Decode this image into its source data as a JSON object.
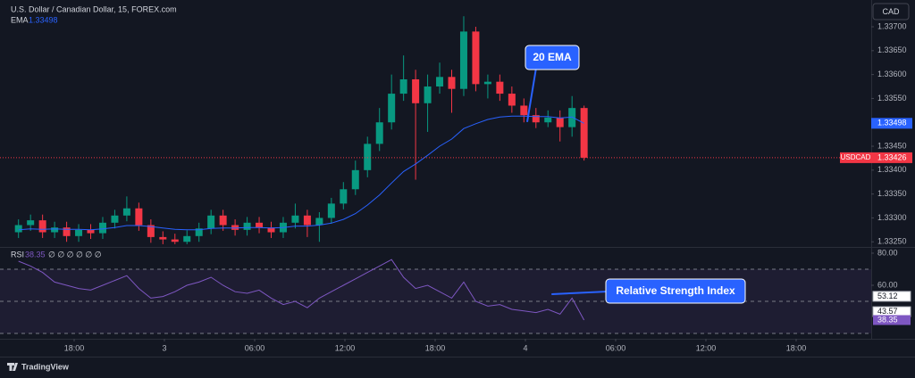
{
  "chart_data": [
    {
      "type": "candlestick",
      "title": "U.S. Dollar / Canadian Dollar, 15, FOREX.com",
      "currency": "CAD",
      "symbol": "USDCAD",
      "up_color": "#089981",
      "down_color": "#f23645",
      "x": [
        14.3,
        15.1,
        15.9,
        16.7,
        17.5,
        18.3,
        19.1,
        19.9,
        20.7,
        21.5,
        22.3,
        23.1,
        23.9,
        24.7,
        25.5,
        26.3,
        27.1,
        27.9,
        28.7,
        29.5,
        30.3,
        31.1,
        31.9,
        32.7,
        33.5,
        34.3,
        35.1,
        35.9,
        36.7,
        37.5,
        38.3,
        39.1,
        39.9,
        40.7,
        41.5,
        42.3,
        43.1,
        43.9,
        44.7,
        45.5,
        46.3,
        47.1,
        47.9,
        48.7,
        49.5,
        50.3,
        51.1,
        51.9
      ],
      "open": [
        1.3327,
        1.33285,
        1.33295,
        1.3327,
        1.3328,
        1.33262,
        1.33275,
        1.33268,
        1.3329,
        1.33305,
        1.3332,
        1.33285,
        1.3326,
        1.33255,
        1.3325,
        1.33262,
        1.33278,
        1.33305,
        1.33285,
        1.33275,
        1.3329,
        1.3328,
        1.3327,
        1.3329,
        1.33305,
        1.33285,
        1.333,
        1.3333,
        1.3336,
        1.334,
        1.33455,
        1.335,
        1.3356,
        1.3359,
        1.3354,
        1.33575,
        1.33595,
        1.3357,
        1.3369,
        1.3358,
        1.33585,
        1.3356,
        1.33535,
        1.33515,
        1.335,
        1.3351,
        1.3349,
        1.3353
      ],
      "high": [
        1.33297,
        1.33307,
        1.33307,
        1.33292,
        1.33292,
        1.33287,
        1.33287,
        1.33302,
        1.33317,
        1.33345,
        1.33332,
        1.33297,
        1.33272,
        1.33267,
        1.33274,
        1.3329,
        1.33317,
        1.33317,
        1.33297,
        1.33302,
        1.33302,
        1.33292,
        1.33302,
        1.3333,
        1.33317,
        1.33312,
        1.33342,
        1.33375,
        1.3342,
        1.3347,
        1.3353,
        1.336,
        1.3364,
        1.3361,
        1.336,
        1.33625,
        1.3361,
        1.33722,
        1.337,
        1.336,
        1.336,
        1.33575,
        1.3355,
        1.3353,
        1.33525,
        1.33525,
        1.33555,
        1.33535
      ],
      "low": [
        1.33258,
        1.33273,
        1.33258,
        1.33258,
        1.3325,
        1.3325,
        1.33256,
        1.33256,
        1.33278,
        1.33293,
        1.33273,
        1.33248,
        1.33245,
        1.33245,
        1.33245,
        1.3325,
        1.33266,
        1.33273,
        1.33263,
        1.33263,
        1.33268,
        1.33258,
        1.33258,
        1.33278,
        1.3326,
        1.3325,
        1.33288,
        1.33318,
        1.33348,
        1.33385,
        1.3344,
        1.33485,
        1.33545,
        1.3338,
        1.3348,
        1.3356,
        1.3352,
        1.33555,
        1.33565,
        1.3355,
        1.33545,
        1.3352,
        1.335,
        1.33488,
        1.3349,
        1.3346,
        1.3347,
        1.3342
      ],
      "close": [
        1.33285,
        1.33295,
        1.3327,
        1.3328,
        1.33262,
        1.33275,
        1.33268,
        1.3329,
        1.33305,
        1.3332,
        1.33285,
        1.3326,
        1.33255,
        1.3325,
        1.33262,
        1.33278,
        1.33305,
        1.33285,
        1.33275,
        1.3329,
        1.3328,
        1.3327,
        1.3329,
        1.33305,
        1.33285,
        1.333,
        1.3333,
        1.3336,
        1.334,
        1.33455,
        1.335,
        1.3356,
        1.3359,
        1.3354,
        1.33575,
        1.33595,
        1.3357,
        1.3369,
        1.3358,
        1.33585,
        1.3356,
        1.33535,
        1.33515,
        1.335,
        1.3351,
        1.3349,
        1.3353,
        1.33426
      ],
      "series": [
        {
          "name": "EMA",
          "color": "#2962ff",
          "values": [
            1.33275,
            1.33277,
            1.33276,
            1.33277,
            1.33276,
            1.33276,
            1.33275,
            1.33277,
            1.3328,
            1.33284,
            1.33284,
            1.33282,
            1.33279,
            1.33276,
            1.33275,
            1.33275,
            1.33278,
            1.33279,
            1.33279,
            1.3328,
            1.3328,
            1.33279,
            1.3328,
            1.33283,
            1.33283,
            1.33285,
            1.33289,
            1.33297,
            1.33309,
            1.33327,
            1.33348,
            1.33373,
            1.33397,
            1.33413,
            1.33431,
            1.3345,
            1.33465,
            1.33487,
            1.33497,
            1.33506,
            1.33511,
            1.33513,
            1.33513,
            1.33512,
            1.33512,
            1.33509,
            1.33511,
            1.33498
          ]
        }
      ],
      "xlim": [
        13.07,
        70.99
      ],
      "ylim": [
        1.33243,
        1.33756
      ],
      "yticks": [
        {
          "value": 1.337,
          "label": "1.33700"
        },
        {
          "value": 1.3365,
          "label": "1.33650"
        },
        {
          "value": 1.336,
          "label": "1.33600"
        },
        {
          "value": 1.3355,
          "label": "1.33550"
        },
        {
          "value": 1.3345,
          "label": "1.33450"
        },
        {
          "value": 1.334,
          "label": "1.33400"
        },
        {
          "value": 1.3335,
          "label": "1.33350"
        },
        {
          "value": 1.333,
          "label": "1.33300"
        },
        {
          "value": 1.3325,
          "label": "1.33250"
        }
      ],
      "annotations": [
        {
          "text": "20 EMA"
        }
      ]
    },
    {
      "type": "line",
      "series": [
        {
          "name": "RSI",
          "color": "#7e57c2",
          "values": [
            75,
            72,
            68,
            62,
            60,
            58,
            57,
            60,
            63,
            66,
            58,
            52,
            53,
            56,
            60,
            62,
            65,
            60,
            56,
            55,
            57,
            52,
            48,
            50,
            46,
            52,
            56,
            60,
            64,
            68,
            72,
            76,
            65,
            58,
            60,
            56,
            52,
            62,
            50,
            47,
            48,
            45,
            44,
            43,
            45,
            42,
            52,
            38.35
          ]
        }
      ],
      "header_extra": "∅ ∅ ∅ ∅ ∅ ∅",
      "levels": [
        70,
        50,
        30
      ],
      "scale_labels": [
        53.12,
        43.57
      ],
      "ylim": [
        26.7,
        82.2
      ],
      "yticks": [
        {
          "value": 80,
          "label": "80.00"
        },
        {
          "value": 60,
          "label": "60.00"
        }
      ],
      "xlim": [
        13.07,
        70.99
      ],
      "xticks": [
        {
          "value": 18,
          "label": "18:00"
        },
        {
          "value": 24,
          "label": "3"
        },
        {
          "value": 30,
          "label": "06:00"
        },
        {
          "value": 36,
          "label": "12:00"
        },
        {
          "value": 42,
          "label": "18:00"
        },
        {
          "value": 48,
          "label": "4"
        },
        {
          "value": 54,
          "label": "06:00"
        },
        {
          "value": 60,
          "label": "12:00"
        },
        {
          "value": 66,
          "label": "18:00"
        }
      ],
      "annotations": [
        {
          "text": "Relative Strength Index"
        }
      ]
    }
  ],
  "logo": "TradingView"
}
